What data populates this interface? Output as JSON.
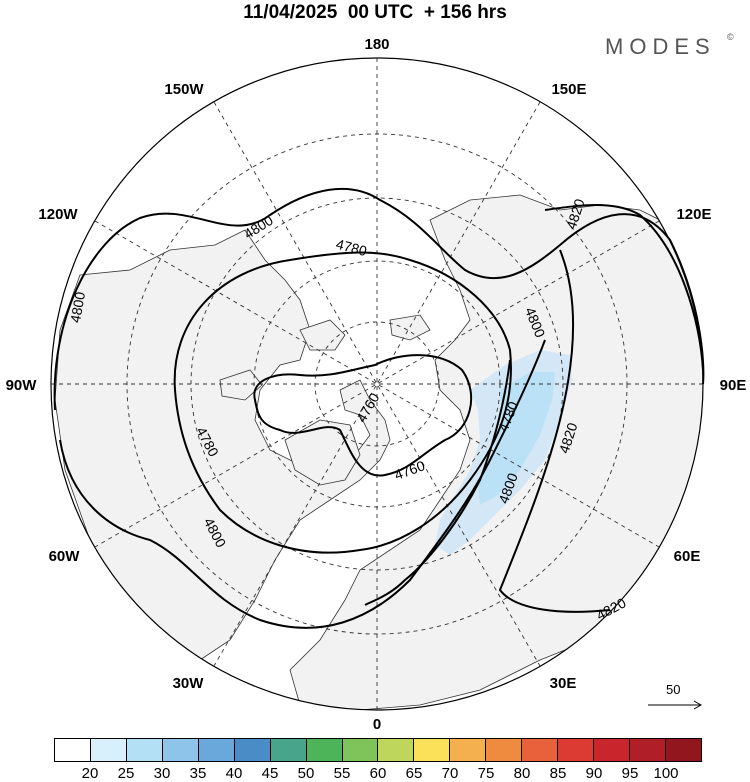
{
  "title": "11/04/2025  00 UTC  + 156 hrs",
  "brand": "MODES",
  "brand_mark": "©",
  "longitude_labels": {
    "top": "180",
    "upper_left": "150W",
    "upper_right": "150E",
    "left_upper": "120W",
    "right_upper": "120E",
    "left": "90W",
    "right": "90E",
    "left_lower": "60W",
    "right_lower": "60E",
    "lower_left": "30W",
    "lower_right": "30E",
    "bottom": "0"
  },
  "contour_labels": {
    "c1": "4800",
    "c2": "4800",
    "c3": "4780",
    "c4": "4820",
    "c5": "4800",
    "c6": "4760",
    "c7": "4780",
    "c8": "4780",
    "c9": "4820",
    "c10": "4760",
    "c11": "4800",
    "c12": "4800",
    "c13": "4820"
  },
  "reference_vector": "50",
  "colorbar": {
    "labels": [
      "20",
      "25",
      "30",
      "35",
      "40",
      "45",
      "50",
      "55",
      "60",
      "65",
      "70",
      "75",
      "80",
      "85",
      "90",
      "95",
      "100"
    ],
    "colors": [
      "#ffffff",
      "#d7f0fb",
      "#b4e0f5",
      "#8ec4ea",
      "#6aa7db",
      "#4a8cc6",
      "#48a58b",
      "#4db45a",
      "#7fc45b",
      "#bdd65b",
      "#fbe15a",
      "#f4b04e",
      "#ee8b3f",
      "#e8613a",
      "#dc3b33",
      "#c8252d",
      "#b01e28",
      "#92161d"
    ]
  },
  "colors": {
    "land": "#f2f2f2",
    "jet": "#cfe6f7"
  }
}
